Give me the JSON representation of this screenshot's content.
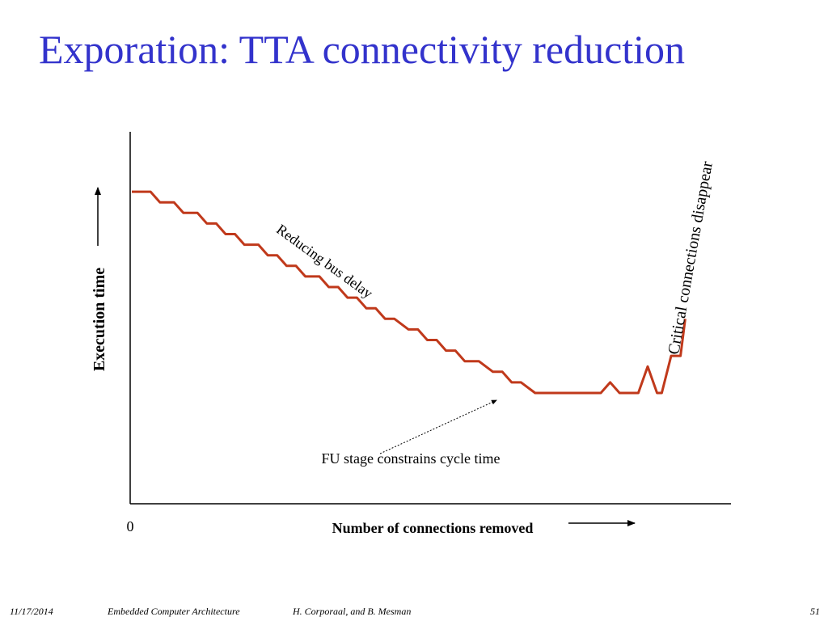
{
  "slide": {
    "title": "Exporation: TTA connectivity reduction"
  },
  "footer": {
    "date": "11/17/2014",
    "course": "Embedded Computer Architecture",
    "authors": "H. Corporaal, and B. Mesman",
    "page": "51"
  },
  "colors": {
    "title": "#3333cc",
    "line": "#c0391b",
    "axis": "#000000"
  },
  "chart_data": {
    "type": "line",
    "title": "",
    "xlabel": "Number of connections removed",
    "ylabel": "Execution time",
    "x_tick_labels": [
      "0"
    ],
    "grid": false,
    "legend": "none",
    "series": [
      {
        "x": [
          0,
          2,
          3,
          4.5,
          5.5,
          7,
          8,
          9,
          10,
          11,
          12,
          13.5,
          14.5,
          15.5,
          16.5,
          17.5,
          18.5,
          20,
          21,
          22,
          23,
          24,
          25,
          26,
          27,
          28,
          29.5,
          30.5,
          31.5,
          32.5,
          33.5,
          34.5,
          35.5,
          37,
          38.5,
          39.5,
          40.5,
          41.5,
          43,
          43.5,
          44.5,
          45.5,
          47,
          48,
          50,
          51,
          52,
          53,
          54,
          55,
          56,
          56.5,
          57.5,
          58.5,
          59
        ],
        "y": [
          38,
          38,
          36,
          36,
          34,
          34,
          32,
          32,
          30,
          30,
          28,
          28,
          26,
          26,
          24,
          24,
          22,
          22,
          20,
          20,
          18,
          18,
          16,
          16,
          14,
          14,
          12,
          12,
          10,
          10,
          8,
          8,
          6,
          6,
          4,
          4,
          2,
          2,
          0,
          0,
          0,
          0,
          0,
          0,
          0,
          2,
          0,
          0,
          0,
          5,
          0,
          0,
          7,
          7,
          14
        ]
      }
    ],
    "annotations": [
      {
        "text": "Reducing bus delay"
      },
      {
        "text": "Critical connections disappear"
      },
      {
        "text": "FU stage constrains cycle time"
      }
    ]
  }
}
